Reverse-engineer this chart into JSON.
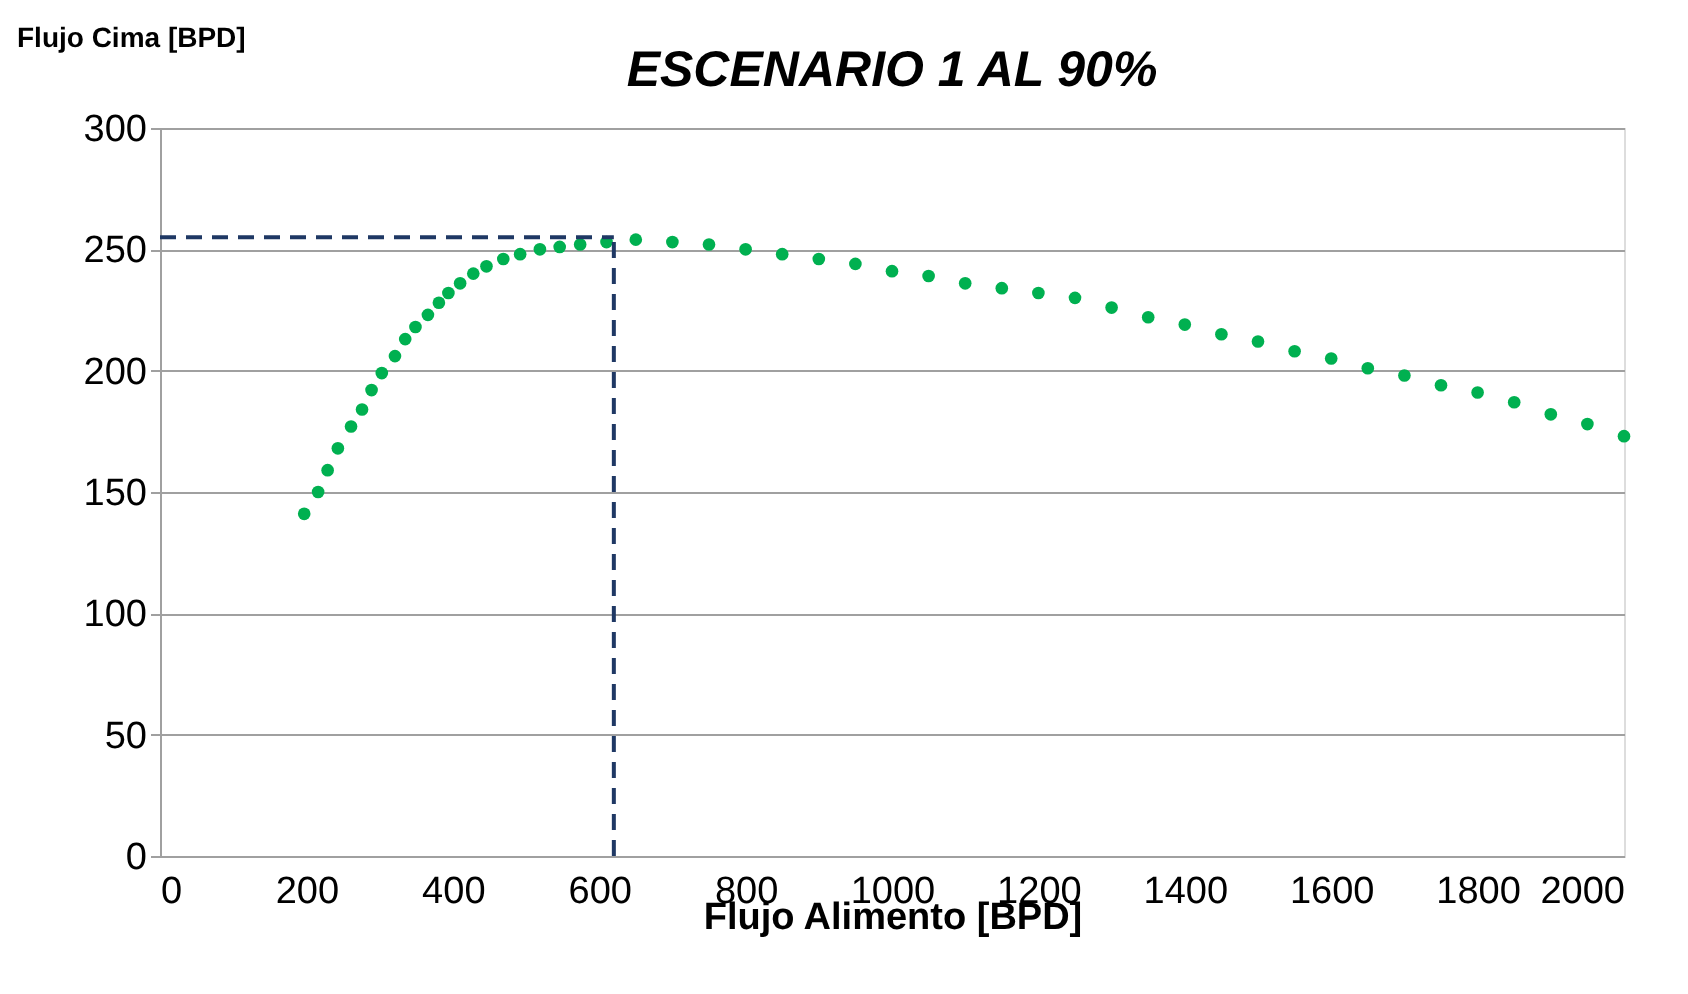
{
  "chart_data": {
    "type": "scatter",
    "title": "ESCENARIO 1 AL 90%",
    "xlabel": "Flujo Alimento [BPD]",
    "ylabel": "Flujo Cima [BPD]",
    "x": [
      197,
      216,
      229,
      243,
      261,
      276,
      289,
      303,
      321,
      335,
      349,
      366,
      381,
      394,
      410,
      428,
      446,
      469,
      492,
      519,
      546,
      574,
      610,
      650,
      700,
      750,
      800,
      850,
      900,
      950,
      1000,
      1050,
      1100,
      1150,
      1200,
      1250,
      1300,
      1350,
      1400,
      1450,
      1500,
      1550,
      1600,
      1650,
      1700,
      1750,
      1800,
      1850,
      1900,
      1950,
      2000
    ],
    "series": [
      {
        "color": "#00b050",
        "values": [
          141,
          150,
          159,
          168,
          177,
          184,
          192,
          199,
          206,
          213,
          218,
          223,
          228,
          232,
          236,
          240,
          243,
          246,
          248,
          250,
          251,
          252,
          253,
          254,
          253,
          252,
          250,
          248,
          246,
          244,
          241,
          239,
          236,
          234,
          232,
          230,
          226,
          222,
          219,
          215,
          212,
          208,
          205,
          201,
          198,
          194,
          191,
          187,
          182,
          178,
          173
        ]
      }
    ],
    "xlim": [
      0,
      2000
    ],
    "xticks": [
      0,
      200,
      400,
      600,
      800,
      1000,
      1200,
      1400,
      1600,
      1800,
      2000
    ],
    "ylim": [
      0,
      300
    ],
    "yticks": [
      0,
      50,
      100,
      150,
      200,
      250,
      300
    ],
    "grid": "y",
    "marker": "circle",
    "ref_lines": [
      {
        "axis": "y",
        "value": 255,
        "color": "#1f3864",
        "line_style": "dashed"
      },
      {
        "axis": "x",
        "value": 620,
        "color": "#1f3864",
        "line_style": "dashed"
      }
    ]
  }
}
